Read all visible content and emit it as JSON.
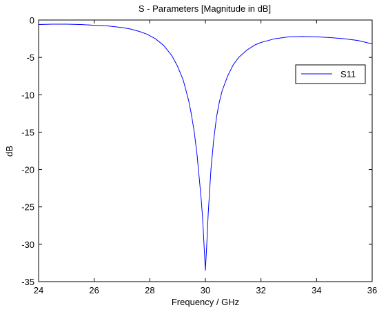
{
  "chart_data": {
    "type": "line",
    "title": "S - Parameters [Magnitude in dB]",
    "xlabel": "Frequency / GHz",
    "ylabel": "dB",
    "xlim": [
      24,
      36
    ],
    "ylim": [
      -35,
      0
    ],
    "xticks": [
      24,
      26,
      28,
      30,
      32,
      34,
      36
    ],
    "yticks": [
      0,
      -5,
      -10,
      -15,
      -20,
      -25,
      -30,
      -35
    ],
    "xtick_labels": [
      "24",
      "26",
      "28",
      "30",
      "32",
      "34",
      "36"
    ],
    "ytick_labels": [
      "0",
      "-5",
      "-10",
      "-15",
      "-20",
      "-25",
      "-30",
      "-35"
    ],
    "grid": false,
    "legend_position": "top-right",
    "series": [
      {
        "name": "S11",
        "color": "#0000ff",
        "x": [
          24.0,
          24.5,
          25.0,
          25.5,
          26.0,
          26.5,
          27.0,
          27.3,
          27.6,
          27.9,
          28.2,
          28.5,
          28.8,
          29.0,
          29.2,
          29.4,
          29.5,
          29.6,
          29.7,
          29.8,
          29.85,
          29.9,
          29.95,
          30.0,
          30.05,
          30.1,
          30.15,
          30.2,
          30.3,
          30.4,
          30.5,
          30.6,
          30.8,
          31.0,
          31.2,
          31.5,
          31.8,
          32.0,
          32.5,
          33.0,
          33.5,
          34.0,
          34.5,
          35.0,
          35.5,
          36.0
        ],
        "y": [
          -0.6,
          -0.55,
          -0.55,
          -0.6,
          -0.7,
          -0.8,
          -1.0,
          -1.2,
          -1.5,
          -1.9,
          -2.5,
          -3.4,
          -4.8,
          -6.2,
          -8.0,
          -10.8,
          -12.7,
          -15.0,
          -18.0,
          -22.0,
          -24.0,
          -26.5,
          -30.0,
          -33.5,
          -30.0,
          -26.0,
          -23.0,
          -20.0,
          -16.0,
          -13.0,
          -11.0,
          -9.5,
          -7.5,
          -6.0,
          -5.0,
          -4.0,
          -3.3,
          -3.0,
          -2.5,
          -2.25,
          -2.2,
          -2.25,
          -2.35,
          -2.5,
          -2.75,
          -3.2
        ]
      }
    ]
  }
}
